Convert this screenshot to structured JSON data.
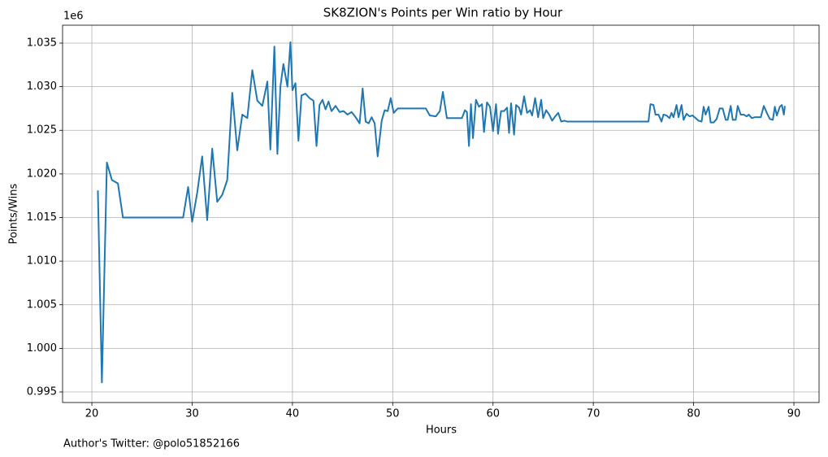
{
  "chart_data": {
    "type": "line",
    "title": "SK8ZION's Points per Win ratio by Hour",
    "xlabel": "Hours",
    "ylabel": "Points/Wins",
    "y_offset_label": "1e6",
    "footnote": "Author's Twitter: @polo51852166",
    "xlim": [
      17.08,
      92.51
    ],
    "ylim": [
      993790,
      1037050
    ],
    "xticks": [
      20,
      30,
      40,
      50,
      60,
      70,
      80,
      90
    ],
    "yticks": [
      {
        "value": 995000,
        "label": "0.995"
      },
      {
        "value": 1000000,
        "label": "1.000"
      },
      {
        "value": 1005000,
        "label": "1.005"
      },
      {
        "value": 1010000,
        "label": "1.010"
      },
      {
        "value": 1015000,
        "label": "1.015"
      },
      {
        "value": 1020000,
        "label": "1.020"
      },
      {
        "value": 1025000,
        "label": "1.025"
      },
      {
        "value": 1030000,
        "label": "1.030"
      },
      {
        "value": 1035000,
        "label": "1.035"
      }
    ],
    "grid": true,
    "series": [
      {
        "color": "#1f77b4",
        "x": [
          20.6,
          21.0,
          21.5,
          22.0,
          22.6,
          23.1,
          29.1,
          29.6,
          30.0,
          30.5,
          31.0,
          31.5,
          32.0,
          32.5,
          33.0,
          33.5,
          34.0,
          34.5,
          35.0,
          35.5,
          36.0,
          36.5,
          37.0,
          37.5,
          37.8,
          38.2,
          38.5,
          38.8,
          39.1,
          39.5,
          39.8,
          40.0,
          40.3,
          40.6,
          40.9,
          41.3,
          41.7,
          42.1,
          42.4,
          42.7,
          43.0,
          43.3,
          43.6,
          43.9,
          44.3,
          44.7,
          45.1,
          45.5,
          45.9,
          46.3,
          46.7,
          47.0,
          47.3,
          47.6,
          47.9,
          48.2,
          48.5,
          48.9,
          49.2,
          49.5,
          49.8,
          50.1,
          50.5,
          53.3,
          53.7,
          54.3,
          54.7,
          55.0,
          55.4,
          56.9,
          57.2,
          57.4,
          57.6,
          57.8,
          58.0,
          58.3,
          58.6,
          58.9,
          59.1,
          59.4,
          59.7,
          60.0,
          60.3,
          60.5,
          60.8,
          61.1,
          61.4,
          61.6,
          61.8,
          62.1,
          62.3,
          62.6,
          62.8,
          63.1,
          63.4,
          63.7,
          63.9,
          64.2,
          64.5,
          64.8,
          65.0,
          65.3,
          65.6,
          65.9,
          66.2,
          66.5,
          66.8,
          67.1,
          67.4,
          75.5,
          75.7,
          76.0,
          76.2,
          76.5,
          76.8,
          77.0,
          77.3,
          77.6,
          77.8,
          78.0,
          78.3,
          78.5,
          78.8,
          79.0,
          79.3,
          79.6,
          79.9,
          80.2,
          80.5,
          80.8,
          81.0,
          81.2,
          81.5,
          81.7,
          82.0,
          82.3,
          82.6,
          82.9,
          83.2,
          83.4,
          83.7,
          83.9,
          84.2,
          84.4,
          84.7,
          85.0,
          85.3,
          85.5,
          85.8,
          86.1,
          86.4,
          86.7,
          87.0,
          87.3,
          87.6,
          87.9,
          88.1,
          88.3,
          88.6,
          88.8,
          89.0,
          89.1
        ],
        "values": [
          1018100,
          996100,
          1021300,
          1019300,
          1018900,
          1015000,
          1015000,
          1018500,
          1014500,
          1017800,
          1022000,
          1014700,
          1022900,
          1016800,
          1017600,
          1019300,
          1029300,
          1022700,
          1026800,
          1026400,
          1031900,
          1028400,
          1027800,
          1030600,
          1022800,
          1034600,
          1022300,
          1030000,
          1032600,
          1030000,
          1035100,
          1029600,
          1030400,
          1023800,
          1029000,
          1029200,
          1028700,
          1028400,
          1023200,
          1027900,
          1028500,
          1027400,
          1028300,
          1027200,
          1027800,
          1027100,
          1027200,
          1026800,
          1027100,
          1026500,
          1025800,
          1029800,
          1026000,
          1025800,
          1026500,
          1025800,
          1022000,
          1026100,
          1027300,
          1027200,
          1028700,
          1027000,
          1027500,
          1027500,
          1026700,
          1026600,
          1027200,
          1029400,
          1026400,
          1026400,
          1027300,
          1027100,
          1023200,
          1028000,
          1024100,
          1028500,
          1027700,
          1028000,
          1024800,
          1028200,
          1027700,
          1024900,
          1028000,
          1024600,
          1027200,
          1027200,
          1027600,
          1024700,
          1028100,
          1024500,
          1027900,
          1027600,
          1026800,
          1028900,
          1027000,
          1027300,
          1026700,
          1028700,
          1026500,
          1028500,
          1026400,
          1027300,
          1026800,
          1026100,
          1026600,
          1027000,
          1026000,
          1026100,
          1026000,
          1026000,
          1028000,
          1027900,
          1026800,
          1026800,
          1026000,
          1026800,
          1026700,
          1026400,
          1027000,
          1026500,
          1027900,
          1026500,
          1027900,
          1026200,
          1026900,
          1026600,
          1026700,
          1026400,
          1026100,
          1026000,
          1027700,
          1026800,
          1027700,
          1025900,
          1025900,
          1026300,
          1027500,
          1027500,
          1026200,
          1026200,
          1027800,
          1026200,
          1026200,
          1027800,
          1026800,
          1026800,
          1026600,
          1026800,
          1026400,
          1026500,
          1026500,
          1026500,
          1027800,
          1027000,
          1026300,
          1026200,
          1027700,
          1026700,
          1027700,
          1027900,
          1026800,
          1027800
        ]
      }
    ]
  }
}
